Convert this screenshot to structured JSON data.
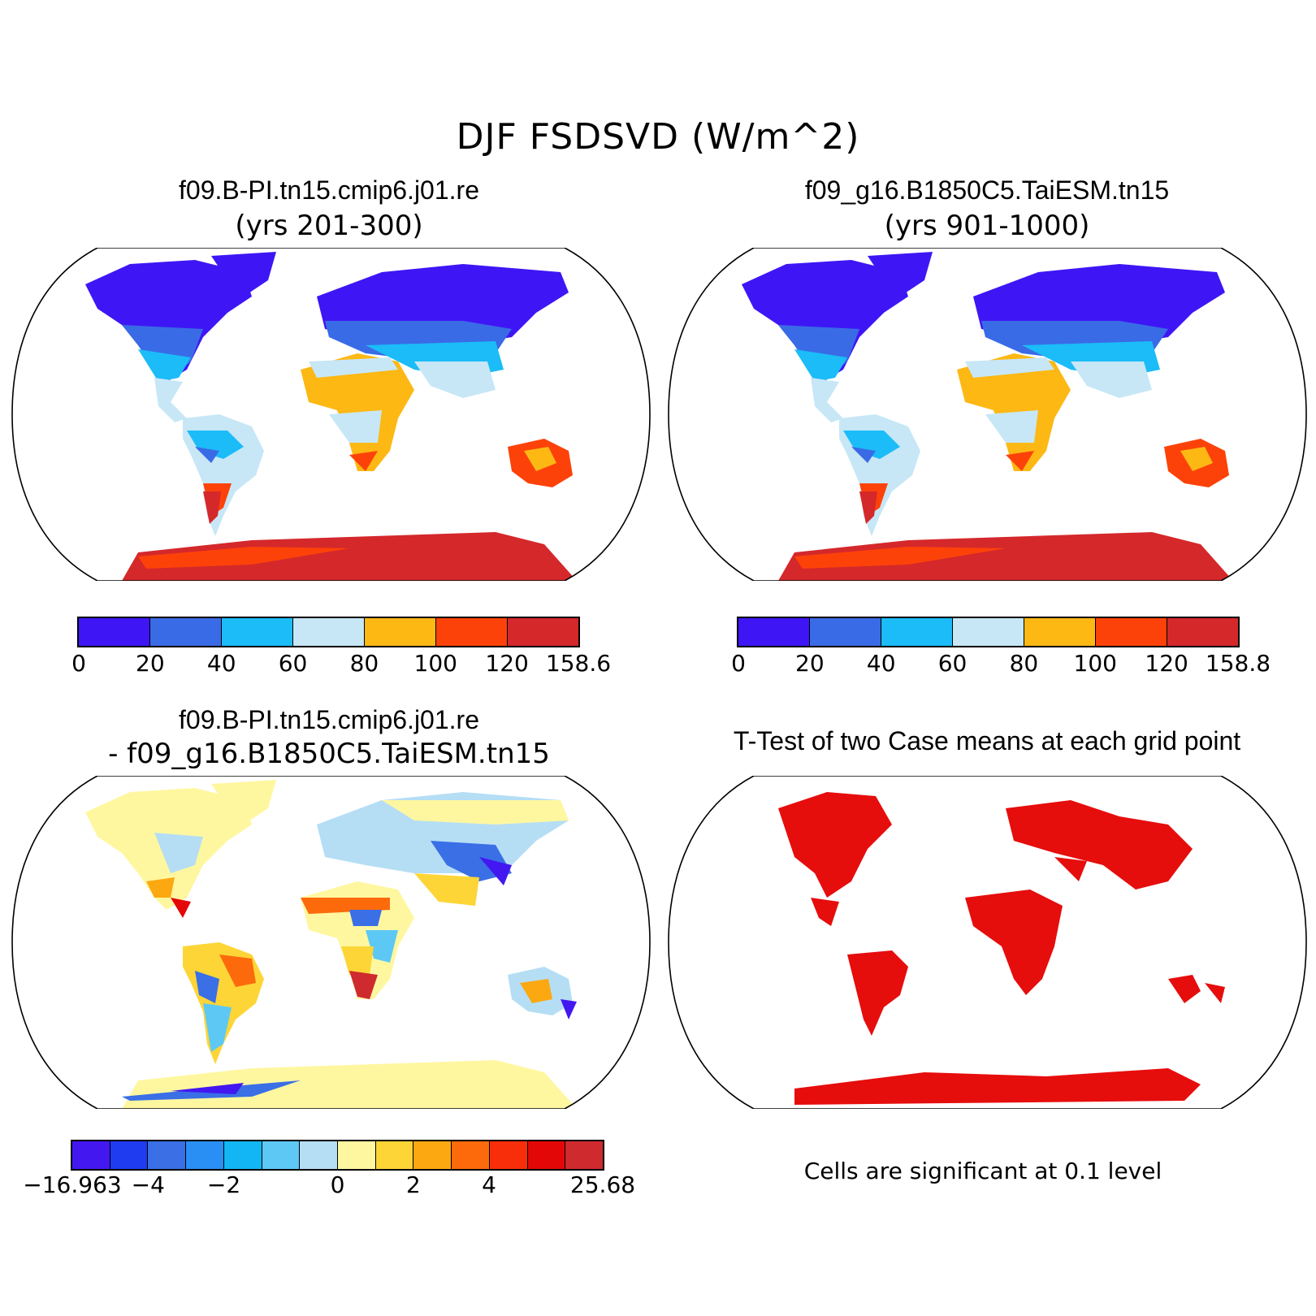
{
  "title": "DJF FSDSVD (W/m^2)",
  "panels": [
    {
      "id": "case1",
      "title": "f09.B-PI.tn15.cmip6.j01.re",
      "subtitle": "(yrs 201-300)",
      "colorbar": {
        "colors": [
          "#3e16f5",
          "#3a6be6",
          "#1bbcf7",
          "#c7e7f7",
          "#fdb814",
          "#fd4209",
          "#d4282b"
        ],
        "tick_labels": [
          "0",
          "20",
          "40",
          "60",
          "80",
          "100",
          "120",
          "158.6"
        ]
      }
    },
    {
      "id": "case2",
      "title": "f09_g16.B1850C5.TaiESM.tn15",
      "subtitle": "(yrs 901-1000)",
      "colorbar": {
        "colors": [
          "#3e16f5",
          "#3a6be6",
          "#1bbcf7",
          "#c7e7f7",
          "#fdb814",
          "#fd4209",
          "#d4282b"
        ],
        "tick_labels": [
          "0",
          "20",
          "40",
          "60",
          "80",
          "100",
          "120",
          "158.8"
        ]
      }
    },
    {
      "id": "diff",
      "title": "f09.B-PI.tn15.cmip6.j01.re",
      "subtitle": "- f09_g16.B1850C5.TaiESM.tn15",
      "colorbar": {
        "colors": [
          "#4318f0",
          "#1f3cf0",
          "#3a6fe6",
          "#2a8ff5",
          "#13b6f5",
          "#5ec8f5",
          "#b5def5",
          "#fff7a0",
          "#fdd536",
          "#fca811",
          "#fc6a0c",
          "#f82e0b",
          "#e40707",
          "#cf2a2e"
        ],
        "tick_labels": [
          "-16.963",
          "-4",
          "-2",
          "0",
          "2",
          "4",
          "25.68"
        ]
      }
    },
    {
      "id": "ttest",
      "title": "T-Test of two Case means at each grid point",
      "note": "Cells are significant at 0.1 level",
      "sig_color": "#e60d0d"
    }
  ]
}
